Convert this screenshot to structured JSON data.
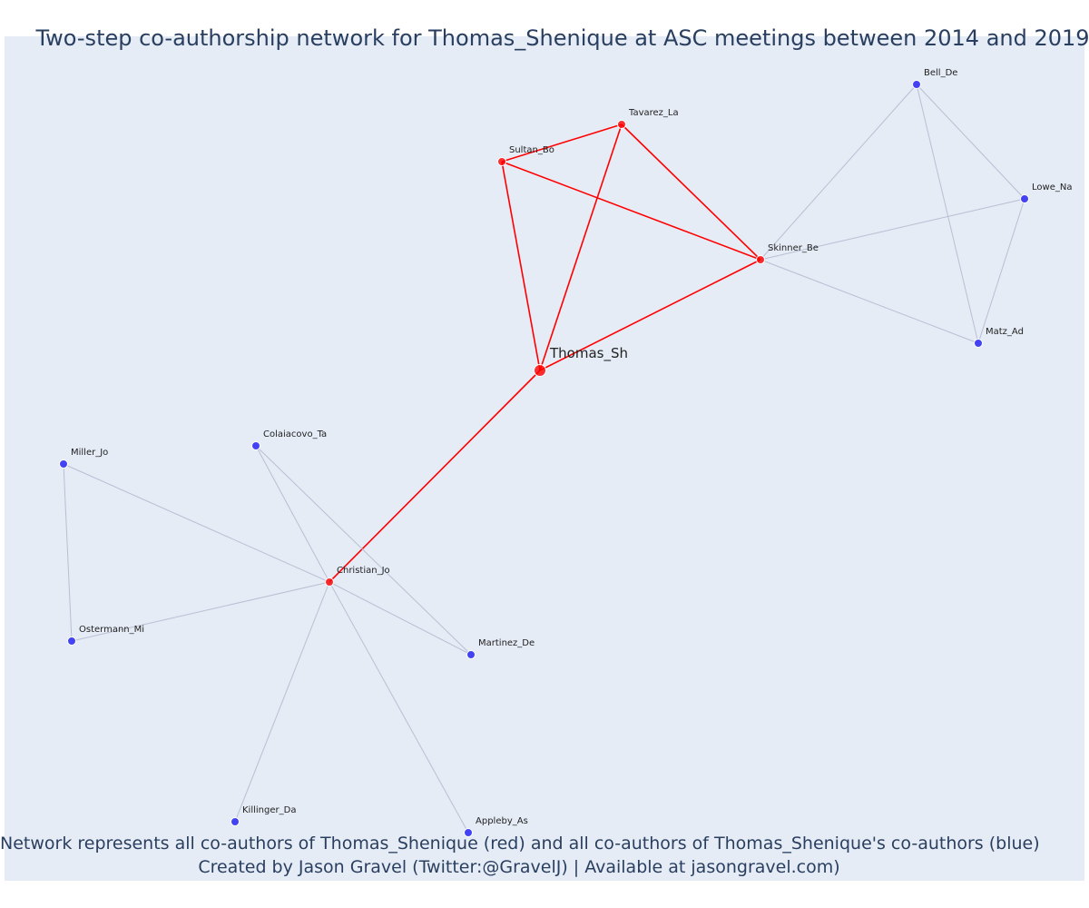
{
  "title": "Two-step co-authorship network for Thomas_Shenique at ASC meetings between 2014 and 2019",
  "footer": {
    "line1": "Network represents all co-authors of Thomas_Shenique (red) and all co-authors of Thomas_Shenique's co-authors (blue)",
    "line2": "Created by Jason Gravel (Twitter:@GravelJ) | Available at jasongravel.com)"
  },
  "colors": {
    "background": "#e5ecf6",
    "first_step": "#ff0000",
    "second_step": "#3a3af2",
    "second_step_edge": "#b8bfd3",
    "text": "#2a3f5f"
  },
  "nodes": [
    {
      "id": "Thomas_Sh",
      "label": "Thomas_Sh",
      "group": "focal"
    },
    {
      "id": "Sultan_Bo",
      "label": "Sultan_Bo",
      "group": "coauthor"
    },
    {
      "id": "Tavarez_La",
      "label": "Tavarez_La",
      "group": "coauthor"
    },
    {
      "id": "Skinner_Be",
      "label": "Skinner_Be",
      "group": "coauthor"
    },
    {
      "id": "Christian_Jo",
      "label": "Christian_Jo",
      "group": "coauthor"
    },
    {
      "id": "Bell_De",
      "label": "Bell_De",
      "group": "second"
    },
    {
      "id": "Lowe_Na",
      "label": "Lowe_Na",
      "group": "second"
    },
    {
      "id": "Matz_Ad",
      "label": "Matz_Ad",
      "group": "second"
    },
    {
      "id": "Colaiacovo_Ta",
      "label": "Colaiacovo_Ta",
      "group": "second"
    },
    {
      "id": "Miller_Jo",
      "label": "Miller_Jo",
      "group": "second"
    },
    {
      "id": "Ostermann_Mi",
      "label": "Ostermann_Mi",
      "group": "second"
    },
    {
      "id": "Martinez_De",
      "label": "Martinez_De",
      "group": "second"
    },
    {
      "id": "Killinger_Da",
      "label": "Killinger_Da",
      "group": "second"
    },
    {
      "id": "Appleby_As",
      "label": "Appleby_As",
      "group": "second"
    }
  ],
  "edges": [
    {
      "from": "Thomas_Sh",
      "to": "Sultan_Bo",
      "type": "first"
    },
    {
      "from": "Thomas_Sh",
      "to": "Tavarez_La",
      "type": "first"
    },
    {
      "from": "Thomas_Sh",
      "to": "Skinner_Be",
      "type": "first"
    },
    {
      "from": "Thomas_Sh",
      "to": "Christian_Jo",
      "type": "first"
    },
    {
      "from": "Sultan_Bo",
      "to": "Tavarez_La",
      "type": "first"
    },
    {
      "from": "Sultan_Bo",
      "to": "Skinner_Be",
      "type": "first"
    },
    {
      "from": "Tavarez_La",
      "to": "Skinner_Be",
      "type": "first"
    },
    {
      "from": "Skinner_Be",
      "to": "Bell_De",
      "type": "second"
    },
    {
      "from": "Skinner_Be",
      "to": "Lowe_Na",
      "type": "second"
    },
    {
      "from": "Skinner_Be",
      "to": "Matz_Ad",
      "type": "second"
    },
    {
      "from": "Bell_De",
      "to": "Lowe_Na",
      "type": "second"
    },
    {
      "from": "Bell_De",
      "to": "Matz_Ad",
      "type": "second"
    },
    {
      "from": "Lowe_Na",
      "to": "Matz_Ad",
      "type": "second"
    },
    {
      "from": "Christian_Jo",
      "to": "Colaiacovo_Ta",
      "type": "second"
    },
    {
      "from": "Christian_Jo",
      "to": "Miller_Jo",
      "type": "second"
    },
    {
      "from": "Christian_Jo",
      "to": "Ostermann_Mi",
      "type": "second"
    },
    {
      "from": "Christian_Jo",
      "to": "Martinez_De",
      "type": "second"
    },
    {
      "from": "Christian_Jo",
      "to": "Killinger_Da",
      "type": "second"
    },
    {
      "from": "Christian_Jo",
      "to": "Appleby_As",
      "type": "second"
    },
    {
      "from": "Miller_Jo",
      "to": "Ostermann_Mi",
      "type": "second"
    },
    {
      "from": "Colaiacovo_Ta",
      "to": "Martinez_De",
      "type": "second"
    }
  ]
}
